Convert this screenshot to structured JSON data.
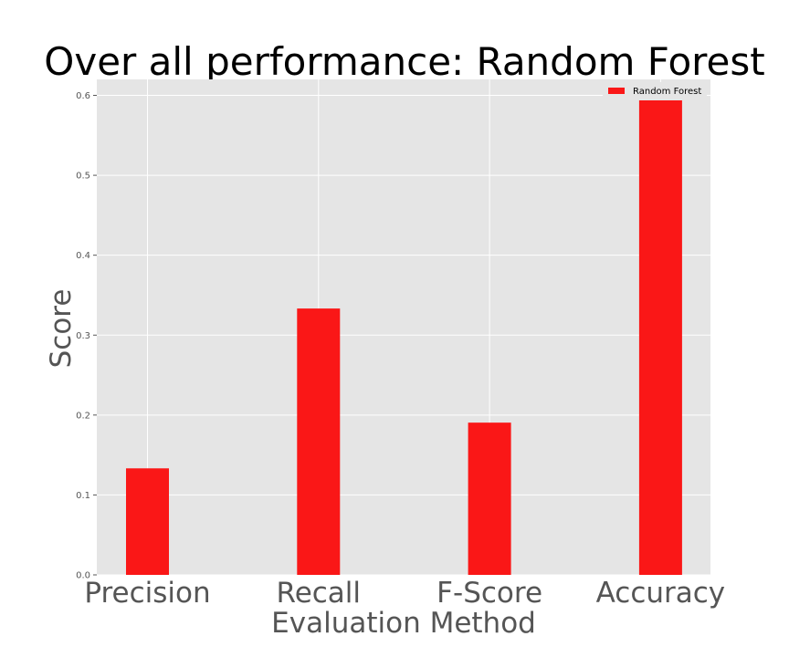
{
  "chart_data": {
    "type": "bar",
    "title": "Over all performance: Random Forest",
    "xlabel": "Evaluation Method",
    "ylabel": "Score",
    "categories": [
      "Precision",
      "Recall",
      "F-Score",
      "Accuracy"
    ],
    "series": [
      {
        "name": "Random Forest",
        "values": [
          0.1333,
          0.3333,
          0.1905,
          0.6
        ],
        "color": "#fa1717"
      }
    ],
    "ylim": [
      0,
      0.62
    ],
    "yticks": [
      "0.0",
      "0.1",
      "0.2",
      "0.3",
      "0.4",
      "0.5",
      "0.6"
    ],
    "grid": true,
    "legend": "top-right",
    "colors": {
      "plot_background": "#e5e5e5",
      "grid": "#ffffff",
      "bar": "#fa1717"
    }
  }
}
